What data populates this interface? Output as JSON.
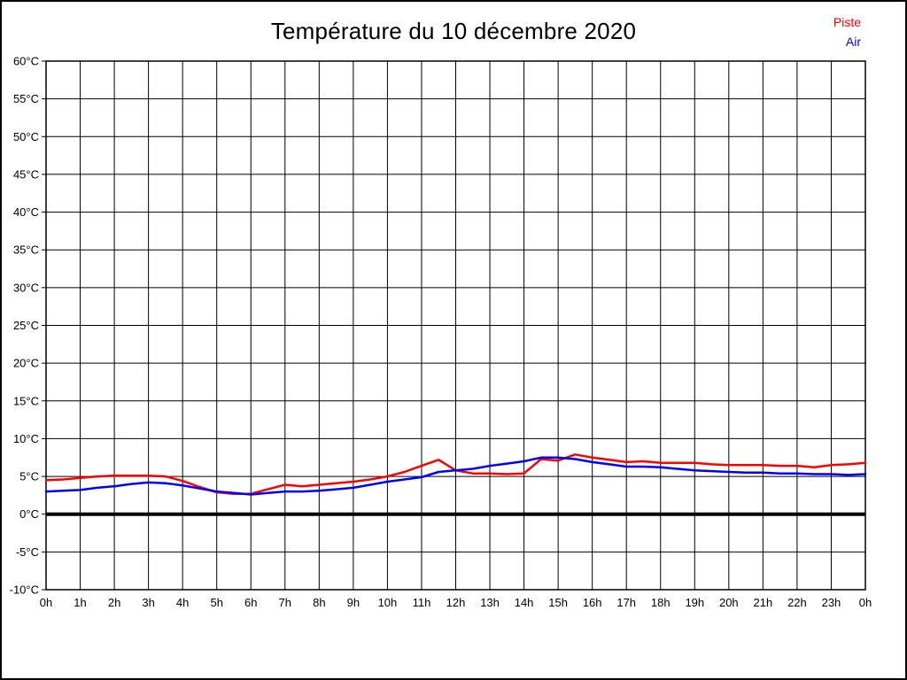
{
  "header": {
    "title": "Température du 10 décembre 2020"
  },
  "legend": {
    "items": [
      {
        "label": "Piste",
        "color": "#ff0000"
      },
      {
        "label": "Air",
        "color": "#0000ff"
      }
    ]
  },
  "chart_data": {
    "type": "line",
    "title": "Température du 10 décembre 2020",
    "xlabel": "",
    "ylabel": "",
    "xlim": [
      0,
      24
    ],
    "ylim": [
      -10,
      60
    ],
    "grid": true,
    "legend_position": "top-right",
    "x_tick_labels": [
      "0h",
      "1h",
      "2h",
      "3h",
      "4h",
      "5h",
      "6h",
      "7h",
      "8h",
      "9h",
      "10h",
      "11h",
      "12h",
      "13h",
      "14h",
      "15h",
      "16h",
      "17h",
      "18h",
      "19h",
      "20h",
      "21h",
      "22h",
      "23h",
      "0h"
    ],
    "y_ticks": [
      -10,
      -5,
      0,
      5,
      10,
      15,
      20,
      25,
      30,
      35,
      40,
      45,
      50,
      55,
      60
    ],
    "y_tick_labels": [
      "-10°C",
      "-5°C",
      "0°C",
      "5°C",
      "10°C",
      "15°C",
      "20°C",
      "25°C",
      "30°C",
      "35°C",
      "40°C",
      "45°C",
      "50°C",
      "55°C",
      "60°C"
    ],
    "zero_line_value": 0,
    "x": [
      0,
      0.5,
      1,
      1.5,
      2,
      2.5,
      3,
      3.5,
      4,
      4.5,
      5,
      5.5,
      6,
      6.5,
      7,
      7.5,
      8,
      8.5,
      9,
      9.5,
      10,
      10.5,
      11,
      11.5,
      12,
      12.5,
      13,
      13.5,
      14,
      14.5,
      15,
      15.5,
      16,
      16.5,
      17,
      17.5,
      18,
      18.5,
      19,
      19.5,
      20,
      20.5,
      21,
      21.5,
      22,
      22.5,
      23,
      23.5,
      24
    ],
    "series": [
      {
        "name": "Piste",
        "color": "#ff0000",
        "values": [
          4.5,
          4.6,
          4.8,
          5.0,
          5.1,
          5.1,
          5.1,
          5.0,
          4.4,
          3.6,
          2.9,
          2.7,
          2.7,
          3.3,
          3.9,
          3.7,
          3.9,
          4.1,
          4.3,
          4.6,
          5.0,
          5.6,
          6.4,
          7.2,
          5.8,
          5.4,
          5.4,
          5.3,
          5.4,
          7.3,
          7.1,
          7.9,
          7.5,
          7.2,
          6.9,
          7.0,
          6.8,
          6.8,
          6.8,
          6.6,
          6.5,
          6.5,
          6.5,
          6.4,
          6.4,
          6.2,
          6.5,
          6.6,
          6.8
        ]
      },
      {
        "name": "Air",
        "color": "#0000ff",
        "values": [
          3.0,
          3.1,
          3.2,
          3.5,
          3.7,
          4.0,
          4.2,
          4.1,
          3.8,
          3.4,
          3.0,
          2.8,
          2.6,
          2.8,
          3.0,
          3.0,
          3.1,
          3.3,
          3.5,
          3.9,
          4.3,
          4.6,
          4.9,
          5.6,
          5.8,
          6.0,
          6.4,
          6.7,
          7.0,
          7.5,
          7.5,
          7.3,
          6.9,
          6.6,
          6.3,
          6.3,
          6.2,
          6.0,
          5.8,
          5.7,
          5.6,
          5.5,
          5.5,
          5.4,
          5.4,
          5.3,
          5.3,
          5.2,
          5.3
        ]
      }
    ]
  }
}
